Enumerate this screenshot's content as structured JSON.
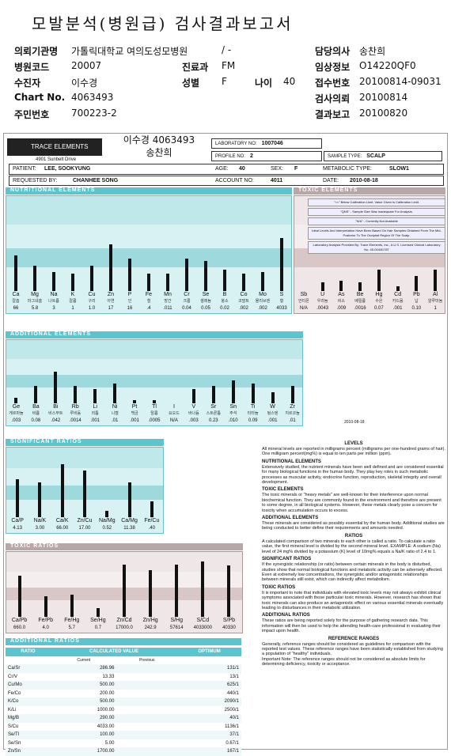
{
  "title": "모발분석(병원급) 검사결과보고서",
  "header": {
    "rows": [
      {
        "l1": "의뢰기관명",
        "v1": "가톨릭대학교 여의도성모병원",
        "l2": "",
        "v2": "/ -",
        "l3": "담당의사",
        "v3": "송찬희"
      },
      {
        "l1": "병원코드",
        "v1": "20007",
        "l2": "진료과",
        "v2": "FM",
        "l3": "임상정보",
        "v3": "O14220QF0"
      },
      {
        "l1": "수진자",
        "v1": "이수경",
        "l2": "성별",
        "v2": "F",
        "l2b": "나이",
        "v2b": "40",
        "l3": "접수번호",
        "v3": "20100814-09031"
      },
      {
        "l1": "Chart No.",
        "v1": "4063493",
        "l2": "",
        "v2": "",
        "l3": "검사의뢰",
        "v3": "20100814"
      },
      {
        "l1": "주민번호",
        "v1": "700223-2",
        "l2": "",
        "v2": "",
        "l3": "결과보고",
        "v3": "20100820"
      }
    ]
  },
  "report": {
    "logo": "TRACE ELEMENTS",
    "address": "4901 Sunbelt Drive",
    "stamp_line1": "이수경 4063493",
    "stamp_line2": "송찬희",
    "lab_no_label": "LABORATORY NO:",
    "lab_no": "1007046",
    "profile_label": "PROFILE NO:",
    "profile": "2",
    "sample_label": "SAMPLE TYPE:",
    "sample": "SCALP",
    "patient_label": "PATIENT:",
    "patient": "LEE, SOOKYUNG",
    "age_label": "AGE:",
    "age": "40",
    "sex_label": "SEX:",
    "sex": "F",
    "metabolic_label": "METABOLIC TYPE:",
    "metabolic": "SLOW1",
    "requested_label": "REQUESTED BY:",
    "requested": "CHANHEE SONG",
    "account_label": "ACCOUNT NO:",
    "account": "4011",
    "date_label": "DATE:",
    "date": "2010-08-18"
  },
  "nutritional": {
    "title": "NUTRITIONAL ELEMENTS",
    "items": [
      {
        "sym": "Ca",
        "kor": "칼슘",
        "val": "66",
        "level": 0.42
      },
      {
        "sym": "Mg",
        "kor": "마그네슘",
        "val": "5.8",
        "level": 0.3
      },
      {
        "sym": "Na",
        "kor": "나트륨",
        "val": "3",
        "level": 0.22
      },
      {
        "sym": "K",
        "kor": "칼륨",
        "val": "1",
        "level": 0.2
      },
      {
        "sym": "Cu",
        "kor": "구리",
        "val": "1.0",
        "level": 0.3
      },
      {
        "sym": "Zn",
        "kor": "아연",
        "val": "17",
        "level": 0.55
      },
      {
        "sym": "P",
        "kor": "인",
        "val": "16",
        "level": 0.38
      },
      {
        "sym": "Fe",
        "kor": "철",
        "val": ".4",
        "level": 0.2
      },
      {
        "sym": "Mn",
        "kor": "망간",
        "val": ".011",
        "level": 0.2
      },
      {
        "sym": "Cr",
        "kor": "크롬",
        "val": "0.04",
        "level": 0.38
      },
      {
        "sym": "Se",
        "kor": "셀레늄",
        "val": "0.05",
        "level": 0.35
      },
      {
        "sym": "B",
        "kor": "붕소",
        "val": "0.02",
        "level": 0.25
      },
      {
        "sym": "Co",
        "kor": "코발트",
        "val": ".002",
        "level": 0.2
      },
      {
        "sym": "Mo",
        "kor": "몰리브덴",
        "val": ".002",
        "level": 0.22
      },
      {
        "sym": "S",
        "kor": "황",
        "val": "4033",
        "level": 0.62
      }
    ]
  },
  "toxic": {
    "title": "TOXIC ELEMENTS",
    "items": [
      {
        "sym": "Sb",
        "kor": "안티몬",
        "val": "N/A",
        "level": 0.0
      },
      {
        "sym": "U",
        "kor": "우라늄",
        "val": ".0043",
        "level": 0.1
      },
      {
        "sym": "As",
        "kor": "비소",
        "val": ".009",
        "level": 0.12
      },
      {
        "sym": "Be",
        "kor": "베릴륨",
        "val": ".0016",
        "level": 0.1
      },
      {
        "sym": "Hg",
        "kor": "수은",
        "val": "0.07",
        "level": 0.25
      },
      {
        "sym": "Cd",
        "kor": "카드뮴",
        "val": ".001",
        "level": 0.06
      },
      {
        "sym": "Pb",
        "kor": "납",
        "val": "0.10",
        "level": 0.18
      },
      {
        "sym": "Al",
        "kor": "알루미늄",
        "val": "1",
        "level": 0.25
      }
    ]
  },
  "additional": {
    "title": "ADDITIONAL ELEMENTS",
    "items": [
      {
        "sym": "Ge",
        "kor": "게르마늄",
        "val": ".003",
        "level": 0.1
      },
      {
        "sym": "Ba",
        "kor": "바륨",
        "val": "0.08",
        "level": 0.3
      },
      {
        "sym": "Bi",
        "kor": "비스무트",
        "val": ".042",
        "level": 0.55
      },
      {
        "sym": "Rb",
        "kor": "루비듐",
        "val": ".0014",
        "level": 0.3
      },
      {
        "sym": "Li",
        "kor": "리튬",
        "val": ".001",
        "level": 0.25
      },
      {
        "sym": "Ni",
        "kor": "니켈",
        "val": ".01",
        "level": 0.35
      },
      {
        "sym": "Pt",
        "kor": "백금",
        "val": ".001",
        "level": 0.05
      },
      {
        "sym": "Tl",
        "kor": "탈륨",
        "val": ".0005",
        "level": 0.05
      },
      {
        "sym": "I",
        "kor": "요오드",
        "val": "N/A",
        "level": 0.0
      },
      {
        "sym": "V",
        "kor": "바나듐",
        "val": ".003",
        "level": 0.25
      },
      {
        "sym": "Sr",
        "kor": "스트론튬",
        "val": "0.23",
        "level": 0.3
      },
      {
        "sym": "Sn",
        "kor": "주석",
        "val": ".010",
        "level": 0.4
      },
      {
        "sym": "Ti",
        "kor": "티타늄",
        "val": "0.09",
        "level": 0.35
      },
      {
        "sym": "W",
        "kor": "텅스텐",
        "val": ".001",
        "level": 0.2
      },
      {
        "sym": "Zr",
        "kor": "지르코늄",
        "val": ".01",
        "level": 0.3
      }
    ]
  },
  "significant": {
    "title": "SIGNIFICANT RATIOS",
    "items": [
      {
        "sym": "Ca/P",
        "val": "4.13",
        "level": 0.6
      },
      {
        "sym": "Na/K",
        "val": "3.00",
        "level": 0.55
      },
      {
        "sym": "Ca/K",
        "val": "66.00",
        "level": 0.85
      },
      {
        "sym": "Zn/Cu",
        "val": "17.00",
        "level": 0.75
      },
      {
        "sym": "Na/Mg",
        "val": "0.52",
        "level": 0.1
      },
      {
        "sym": "Ca/Mg",
        "val": "11.38",
        "level": 0.55
      },
      {
        "sym": "Fe/Cu",
        "val": ".40",
        "level": 0.25
      }
    ]
  },
  "toxic_ratios": {
    "title": "TOXIC RATIOS",
    "items": [
      {
        "sym": "Ca/Pb",
        "val": "660.0",
        "level": 0.7
      },
      {
        "sym": "Fe/Pb",
        "val": "4.0",
        "level": 0.35
      },
      {
        "sym": "Fe/Hg",
        "val": "5.7",
        "level": 0.38
      },
      {
        "sym": "Se/Hg",
        "val": "0.7",
        "level": 0.15
      },
      {
        "sym": "Zn/Cd",
        "val": "17000.0",
        "level": 0.9
      },
      {
        "sym": "Zn/Hg",
        "val": "242.9",
        "level": 0.8
      },
      {
        "sym": "S/Hg",
        "val": "57614",
        "level": 0.9
      },
      {
        "sym": "S/Cd",
        "val": "4033000",
        "level": 0.95
      },
      {
        "sym": "S/Pb",
        "val": "40330",
        "level": 0.88
      }
    ]
  },
  "notes": [
    "\"<<\" Below Calibration Limit. Value Given is Calibration Limit.",
    "\"QNS\" - Sample Size Was Inadequate For Analysis.",
    "\"N/A\" - Currently Not Available",
    "Ideal Levels And Interpretation Have Been Based On Hair Samples Obtained From The Mid-Posterior To The Occipital Region Of The Scalp.",
    "Laboratory Analysis Provided By: Trace Elements, Inc., A U.S. Licensed Clinical Laboratory No. 45-D0481787"
  ],
  "sign_date": "2010-08-18",
  "text": {
    "levels_h": "LEVELS",
    "levels": "All mineral levels are reported in milligrams percent (milligrams per one-hundred grams of hair). One milligram percent(mg%) is equal to ten parts per million (ppm).",
    "nutr_h": "NUTRITIONAL ELEMENTS",
    "nutr": "Extensively studied, the nutrient minerals have been well defined and are considered essential for many biological functions in the human body. They play key roles in such metabolic processes as muscular activity, endocrine function, reproduction, skeletal integrity and overall development.",
    "tox_h": "TOXIC ELEMENTS",
    "tox": "The toxic minerals or \"heavy metals\" are well-known for their interference upon normal biochemical function. They are commonly found in the environment and therefore are present to some degree, in all biological systems. However, these metals clearly pose a concern for toxicity when accumulation occurs to excess.",
    "add_h": "ADDITIONAL ELEMENTS",
    "add": "These minerals are considered as possibly essential by the human body. Additional studies are being conducted to better define their requirements and amounts needed.",
    "ratios_h": "RATIOS",
    "ratios": "A calculated comparison of two minerals to each other is called a ratio. To calculate a ratio value, the first mineral level is divided by the second mineral level. EXAMPLE: A sodium (Na) level of 24 mg% divided by a potassium (K) level of 10mg% equals a Na/K ratio of 2.4 to 1.",
    "sig_h": "SIGNIFICANT RATIOS",
    "sig": "If the synergistic relationship (or ratio) between certain minerals in the body is disturbed, studies show that normal biological functions and metabolic activity can be adversely affected. Even at extremely low concentrations, the synergistic and/or antagonistic relationships between minerals still exist, which can indirectly affect metabolism.",
    "toxr_h": "TOXIC RATIOS",
    "toxr": "It is important to note that individuals with elevated toxic levels may not always exhibit clinical symptoms associated with those particular toxic minerals. However, research has shown that toxic minerals can also produce an antagonistic effect on various essential minerals eventually leading to disturbances in their metabolic utilization.",
    "addr_h": "ADDITIONAL RATIOS",
    "addr": "These ratios are being reported solely for the purpose of gathering research data. This information will then be used to help the attending health-care professional in evaluating their impact upon health.",
    "ref_h": "REFERENCE RANGES",
    "ref": "Generally, reference ranges should be considered as guidelines for comparison with the reported test values. These reference ranges have been statistically established from studying a population of \"healthy\" individuals.",
    "ref2": "Important Note: The reference ranges should not be considered as absolute limits for determining deficiency, toxicity or acceptance."
  },
  "additional_ratios": {
    "title": "ADDITIONAL RATIOS",
    "h_ratio": "RATIO",
    "h_calc": "CALCULATED VALUE",
    "h_opt": "OPTIMUM",
    "h_current": "Current",
    "h_previous": "Previous",
    "rows": [
      {
        "r": "Ca/Sr",
        "v": "286.96",
        "o": "131/1"
      },
      {
        "r": "Cr/V",
        "v": "13.33",
        "o": "13/1"
      },
      {
        "r": "Cu/Mo",
        "v": "500.00",
        "o": "625/1"
      },
      {
        "r": "Fe/Co",
        "v": "200.00",
        "o": "440/1"
      },
      {
        "r": "K/Co",
        "v": "500.00",
        "o": "2090/1"
      },
      {
        "r": "K/Li",
        "v": "1000.00",
        "o": "2500/1"
      },
      {
        "r": "Mg/B",
        "v": "290.00",
        "o": "40/1"
      },
      {
        "r": "S/Cu",
        "v": "4033.00",
        "o": "1136/1"
      },
      {
        "r": "Se/Tl",
        "v": "100.00",
        "o": "37/1"
      },
      {
        "r": "Se/Sn",
        "v": "5.00",
        "o": "0.67/1"
      },
      {
        "r": "Zn/Sn",
        "v": "1700.00",
        "o": "167/1"
      }
    ]
  }
}
